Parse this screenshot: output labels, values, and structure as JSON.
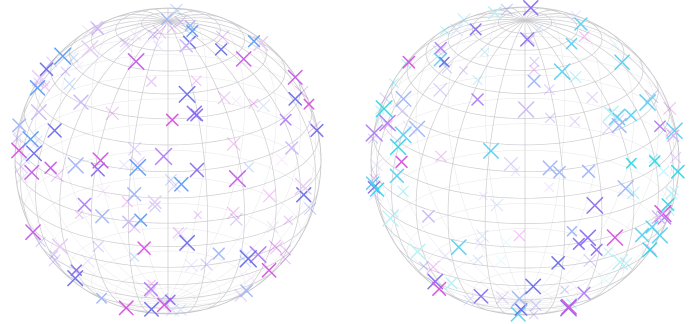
{
  "figure": {
    "description_hidden": "",
    "spheres": [
      {
        "id": "left",
        "marker_count": 150,
        "seed": 7,
        "palette": [
          "#6b6ee8",
          "#8a6cf0",
          "#b07cf4",
          "#c45ce6",
          "#d84ee0",
          "#5b9cf2",
          "#cbb7f7",
          "#e7c9f7",
          "#9fb5f5"
        ],
        "grid_color": "#c8c8cc"
      },
      {
        "id": "right",
        "marker_count": 150,
        "seed": 21,
        "palette": [
          "#6b6ee8",
          "#8a6cf0",
          "#b07cf4",
          "#d84ee0",
          "#2fd6e6",
          "#5ad0f0",
          "#9fb5f5",
          "#cbb7f7",
          "#b8f0f5"
        ],
        "grid_color": "#c8c8cc"
      }
    ]
  }
}
